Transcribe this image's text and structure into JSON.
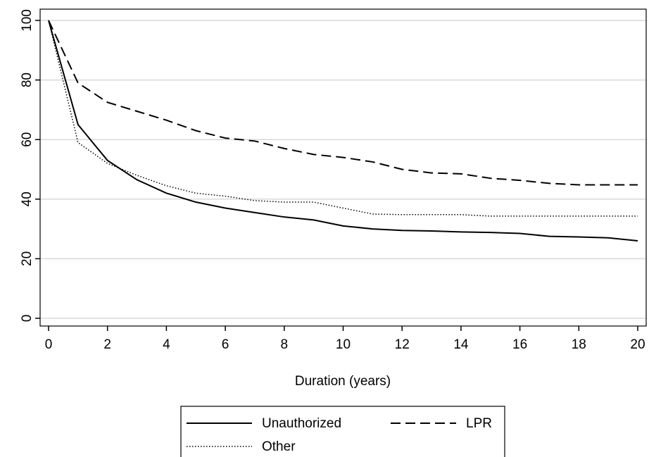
{
  "chart_data": {
    "type": "line",
    "xlabel": "Duration (years)",
    "x": [
      0,
      1,
      2,
      3,
      4,
      5,
      6,
      7,
      8,
      9,
      10,
      11,
      12,
      13,
      14,
      15,
      16,
      17,
      18,
      19,
      20
    ],
    "series": [
      {
        "name": "Unauthorized",
        "color": "#000000",
        "style": "solid",
        "values": [
          100,
          65,
          53,
          46.5,
          42,
          39,
          37,
          35.5,
          34,
          33,
          31,
          30,
          29.5,
          29.3,
          29,
          28.8,
          28.5,
          27.5,
          27.3,
          27,
          26
        ]
      },
      {
        "name": "LPR",
        "color": "#000000",
        "style": "dashed",
        "values": [
          100,
          79,
          72.5,
          69.5,
          66.5,
          63,
          60.5,
          59.5,
          57,
          55,
          54,
          52.5,
          50,
          48.8,
          48.5,
          47,
          46.3,
          45.3,
          44.8,
          44.8,
          44.8
        ]
      },
      {
        "name": "Other",
        "color": "#000000",
        "style": "dotted",
        "values": [
          100,
          59,
          52,
          48,
          44.5,
          42,
          41,
          39.5,
          39,
          39,
          37,
          35,
          34.8,
          34.8,
          34.8,
          34.3,
          34.3,
          34.3,
          34.3,
          34.3,
          34.3
        ]
      }
    ],
    "xlim": [
      0,
      20
    ],
    "xticks": [
      0,
      2,
      4,
      6,
      8,
      10,
      12,
      14,
      16,
      18,
      20
    ],
    "ylim": [
      0,
      100
    ],
    "yticks": [
      0,
      20,
      40,
      60,
      80,
      100
    ],
    "grid": true,
    "legend": "bottom"
  }
}
